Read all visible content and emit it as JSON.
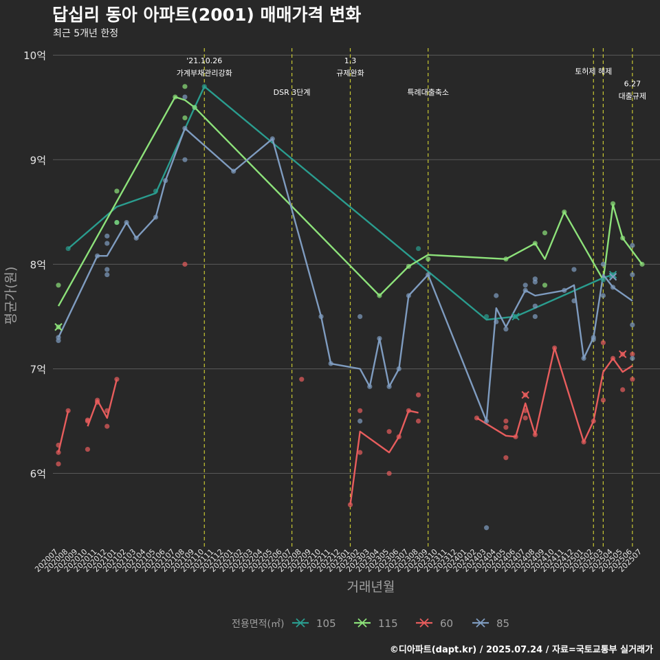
{
  "title": "답십리 동아 아파트(2001) 매매가격 변화",
  "subtitle": "최근 5개년 한정",
  "caption": "©디아파트(dapt.kr) / 2025.07.24 / 자료=국토교통부 실거래가",
  "colors": {
    "background": "#282828",
    "grid": "#5a5a5a",
    "vline": "#c8c832",
    "text": "#ffffff",
    "axis_title": "#a0a0a0",
    "tick": "#e6e6e6"
  },
  "chart_data": {
    "type": "line",
    "xlabel": "거래년월",
    "ylabel": "평균가(원)",
    "ylim": [
      5.3,
      10.1
    ],
    "yticks": [
      6,
      7,
      8,
      9,
      10
    ],
    "ytick_labels": [
      "6억",
      "7억",
      "8억",
      "9억",
      "10억"
    ],
    "x": [
      "202007",
      "202008",
      "202009",
      "202010",
      "202011",
      "202012",
      "202101",
      "202102",
      "202103",
      "202104",
      "202105",
      "202106",
      "202107",
      "202108",
      "202109",
      "202110",
      "202111",
      "202112",
      "202201",
      "202202",
      "202203",
      "202204",
      "202205",
      "202206",
      "202207",
      "202208",
      "202209",
      "202210",
      "202211",
      "202212",
      "202301",
      "202302",
      "202303",
      "202304",
      "202305",
      "202306",
      "202307",
      "202308",
      "202309",
      "202310",
      "202311",
      "202312",
      "202401",
      "202402",
      "202403",
      "202404",
      "202405",
      "202406",
      "202407",
      "202408",
      "202409",
      "202410",
      "202411",
      "202412",
      "202501",
      "202502",
      "202503",
      "202504",
      "202505",
      "202506",
      "202507"
    ],
    "grid": true,
    "legend": {
      "title": "전용면적(㎡)",
      "position": "bottom",
      "items": [
        {
          "name": "105",
          "color": "#2a9d8f"
        },
        {
          "name": "115",
          "color": "#8de27a"
        },
        {
          "name": "60",
          "color": "#e85d5d"
        },
        {
          "name": "85",
          "color": "#7f9cc0"
        }
      ]
    },
    "events": [
      {
        "x": "202110",
        "label": [
          "'21.10.26",
          "가계부채관리강화"
        ],
        "y": 10.0
      },
      {
        "x": "202207",
        "label": [
          "DSR 3단계"
        ],
        "y": 9.7
      },
      {
        "x": "202301",
        "label": [
          "1.3",
          "규제완화"
        ],
        "y": 10.0
      },
      {
        "x": "202309",
        "label": [
          "특례대출축소"
        ],
        "y": 9.7
      },
      {
        "x": "202502",
        "label": [
          "토허제 해제"
        ],
        "y": 9.9
      },
      {
        "x": "202503",
        "label": [],
        "y": 9.9
      },
      {
        "x": "202506",
        "label": [
          "6.27",
          "대출규제"
        ],
        "y": 9.78
      }
    ],
    "series": [
      {
        "name": "105",
        "color": "#2a9d8f",
        "line": [
          [
            "202008",
            8.15
          ],
          [
            "202101",
            8.55
          ],
          [
            "202105",
            8.68
          ],
          [
            "202109",
            9.5
          ],
          [
            "202110",
            9.7
          ],
          [
            "202403",
            7.47
          ],
          [
            "202406",
            7.5
          ],
          [
            "202503",
            7.87
          ],
          [
            "202504",
            7.9
          ]
        ],
        "points": [
          [
            "202008",
            8.15
          ],
          [
            "202101",
            8.4
          ],
          [
            "202105",
            8.7
          ],
          [
            "202109",
            9.5
          ],
          [
            "202110",
            9.7
          ],
          [
            "202308",
            8.15
          ],
          [
            "202403",
            7.5
          ],
          [
            "202406",
            7.5
          ],
          [
            "202503",
            7.85
          ],
          [
            "202504",
            7.9
          ]
        ],
        "crosses": [
          [
            "202406",
            7.5
          ],
          [
            "202504",
            7.9
          ]
        ]
      },
      {
        "name": "115",
        "color": "#8de27a",
        "line": [
          [
            "202007",
            7.6
          ],
          [
            "202107",
            9.6
          ],
          [
            "202108",
            9.57
          ],
          [
            "202109",
            9.5
          ],
          [
            "202304",
            7.7
          ],
          [
            "202307",
            7.98
          ],
          [
            "202309",
            8.09
          ],
          [
            "202405",
            8.05
          ],
          [
            "202408",
            8.2
          ],
          [
            "202409",
            8.05
          ],
          [
            "202411",
            8.5
          ],
          [
            "202503",
            7.85
          ],
          [
            "202504",
            8.57
          ],
          [
            "202505",
            8.25
          ],
          [
            "202507",
            8.0
          ]
        ],
        "points": [
          [
            "202007",
            7.8
          ],
          [
            "202007",
            7.4
          ],
          [
            "202101",
            8.7
          ],
          [
            "202101",
            8.4
          ],
          [
            "202107",
            9.6
          ],
          [
            "202108",
            9.7
          ],
          [
            "202108",
            9.4
          ],
          [
            "202109",
            9.5
          ],
          [
            "202304",
            7.7
          ],
          [
            "202307",
            7.98
          ],
          [
            "202309",
            8.05
          ],
          [
            "202405",
            8.05
          ],
          [
            "202408",
            8.2
          ],
          [
            "202409",
            8.3
          ],
          [
            "202409",
            7.8
          ],
          [
            "202411",
            8.5
          ],
          [
            "202504",
            8.58
          ],
          [
            "202505",
            8.25
          ],
          [
            "202507",
            8.0
          ]
        ],
        "crosses": [
          [
            "202007",
            7.4
          ]
        ]
      },
      {
        "name": "60",
        "color": "#e85d5d",
        "line_segments": [
          [
            [
              "202007",
              6.2
            ],
            [
              "202008",
              6.6
            ]
          ],
          [
            [
              "202010",
              6.45
            ],
            [
              "202011",
              6.7
            ],
            [
              "202012",
              6.53
            ],
            [
              "202101",
              6.9
            ]
          ],
          [
            [
              "202301",
              5.7
            ],
            [
              "202302",
              6.4
            ],
            [
              "202305",
              6.2
            ],
            [
              "202306",
              6.35
            ],
            [
              "202307",
              6.6
            ],
            [
              "202308",
              6.58
            ]
          ],
          [
            [
              "202402",
              6.53
            ],
            [
              "202405",
              6.36
            ],
            [
              "202406",
              6.35
            ],
            [
              "202407",
              6.67
            ],
            [
              "202408",
              6.37
            ],
            [
              "202410",
              7.2
            ],
            [
              "202501",
              6.3
            ],
            [
              "202502",
              6.5
            ],
            [
              "202503",
              6.97
            ],
            [
              "202504",
              7.1
            ],
            [
              "202505",
              6.97
            ],
            [
              "202506",
              7.03
            ]
          ]
        ],
        "points": [
          [
            "202007",
            6.27
          ],
          [
            "202007",
            6.2
          ],
          [
            "202007",
            6.09
          ],
          [
            "202008",
            6.6
          ],
          [
            "202010",
            6.5
          ],
          [
            "202010",
            6.51
          ],
          [
            "202010",
            6.23
          ],
          [
            "202011",
            6.7
          ],
          [
            "202011",
            6.68
          ],
          [
            "202012",
            6.6
          ],
          [
            "202012",
            6.45
          ],
          [
            "202101",
            6.9
          ],
          [
            "202108",
            8.0
          ],
          [
            "202208",
            6.9
          ],
          [
            "202301",
            5.7
          ],
          [
            "202302",
            6.6
          ],
          [
            "202302",
            6.2
          ],
          [
            "202305",
            6.4
          ],
          [
            "202305",
            6.0
          ],
          [
            "202306",
            6.35
          ],
          [
            "202307",
            6.6
          ],
          [
            "202308",
            6.75
          ],
          [
            "202308",
            6.5
          ],
          [
            "202402",
            6.53
          ],
          [
            "202405",
            6.5
          ],
          [
            "202405",
            6.44
          ],
          [
            "202405",
            6.15
          ],
          [
            "202406",
            6.35
          ],
          [
            "202407",
            6.75
          ],
          [
            "202407",
            6.6
          ],
          [
            "202407",
            6.53
          ],
          [
            "202408",
            6.37
          ],
          [
            "202410",
            7.2
          ],
          [
            "202501",
            6.3
          ],
          [
            "202502",
            6.5
          ],
          [
            "202503",
            7.25
          ],
          [
            "202503",
            6.7
          ],
          [
            "202504",
            7.1
          ],
          [
            "202505",
            7.14
          ],
          [
            "202505",
            6.8
          ],
          [
            "202506",
            7.14
          ],
          [
            "202506",
            6.9
          ]
        ],
        "crosses": [
          [
            "202407",
            6.75
          ],
          [
            "202505",
            7.14
          ]
        ]
      },
      {
        "name": "85",
        "color": "#7f9cc0",
        "line": [
          [
            "202007",
            7.3
          ],
          [
            "202011",
            8.08
          ],
          [
            "202012",
            8.08
          ],
          [
            "202102",
            8.4
          ],
          [
            "202103",
            8.25
          ],
          [
            "202105",
            8.45
          ],
          [
            "202106",
            8.8
          ],
          [
            "202108",
            9.3
          ],
          [
            "202201",
            8.89
          ],
          [
            "202205",
            9.2
          ],
          [
            "202210",
            7.5
          ],
          [
            "202211",
            7.05
          ],
          [
            "202302",
            7.0
          ],
          [
            "202303",
            6.83
          ],
          [
            "202304",
            7.29
          ],
          [
            "202305",
            6.83
          ],
          [
            "202306",
            7.0
          ],
          [
            "202307",
            7.7
          ],
          [
            "202309",
            7.9
          ],
          [
            "202403",
            6.5
          ],
          [
            "202404",
            7.58
          ],
          [
            "202405",
            7.4
          ],
          [
            "202407",
            7.75
          ],
          [
            "202408",
            7.7
          ],
          [
            "202411",
            7.75
          ],
          [
            "202412",
            7.8
          ],
          [
            "202501",
            7.1
          ],
          [
            "202502",
            7.3
          ],
          [
            "202503",
            7.9
          ],
          [
            "202504",
            7.78
          ],
          [
            "202506",
            7.65
          ]
        ],
        "points": [
          [
            "202007",
            7.3
          ],
          [
            "202007",
            7.27
          ],
          [
            "202011",
            8.08
          ],
          [
            "202012",
            8.27
          ],
          [
            "202012",
            8.2
          ],
          [
            "202012",
            7.95
          ],
          [
            "202012",
            7.9
          ],
          [
            "202102",
            8.4
          ],
          [
            "202103",
            8.25
          ],
          [
            "202105",
            8.45
          ],
          [
            "202106",
            8.8
          ],
          [
            "202108",
            9.6
          ],
          [
            "202108",
            9.3
          ],
          [
            "202108",
            9.0
          ],
          [
            "202201",
            8.89
          ],
          [
            "202205",
            9.2
          ],
          [
            "202210",
            7.5
          ],
          [
            "202211",
            7.05
          ],
          [
            "202302",
            7.5
          ],
          [
            "202302",
            6.5
          ],
          [
            "202303",
            6.83
          ],
          [
            "202304",
            7.29
          ],
          [
            "202305",
            6.83
          ],
          [
            "202306",
            7.0
          ],
          [
            "202307",
            7.7
          ],
          [
            "202309",
            7.9
          ],
          [
            "202403",
            6.5
          ],
          [
            "202403",
            5.48
          ],
          [
            "202404",
            7.7
          ],
          [
            "202404",
            7.45
          ],
          [
            "202405",
            7.38
          ],
          [
            "202407",
            7.8
          ],
          [
            "202407",
            7.75
          ],
          [
            "202408",
            7.86
          ],
          [
            "202408",
            7.83
          ],
          [
            "202408",
            7.6
          ],
          [
            "202408",
            7.5
          ],
          [
            "202411",
            7.75
          ],
          [
            "202412",
            7.95
          ],
          [
            "202412",
            7.65
          ],
          [
            "202501",
            7.1
          ],
          [
            "202502",
            7.3
          ],
          [
            "202502",
            7.28
          ],
          [
            "202503",
            8.0
          ],
          [
            "202503",
            7.7
          ],
          [
            "202504",
            7.78
          ],
          [
            "202506",
            8.18
          ],
          [
            "202506",
            7.9
          ],
          [
            "202506",
            7.42
          ],
          [
            "202506",
            7.1
          ]
        ],
        "crosses": [
          [
            "202504",
            7.88
          ]
        ]
      }
    ]
  }
}
